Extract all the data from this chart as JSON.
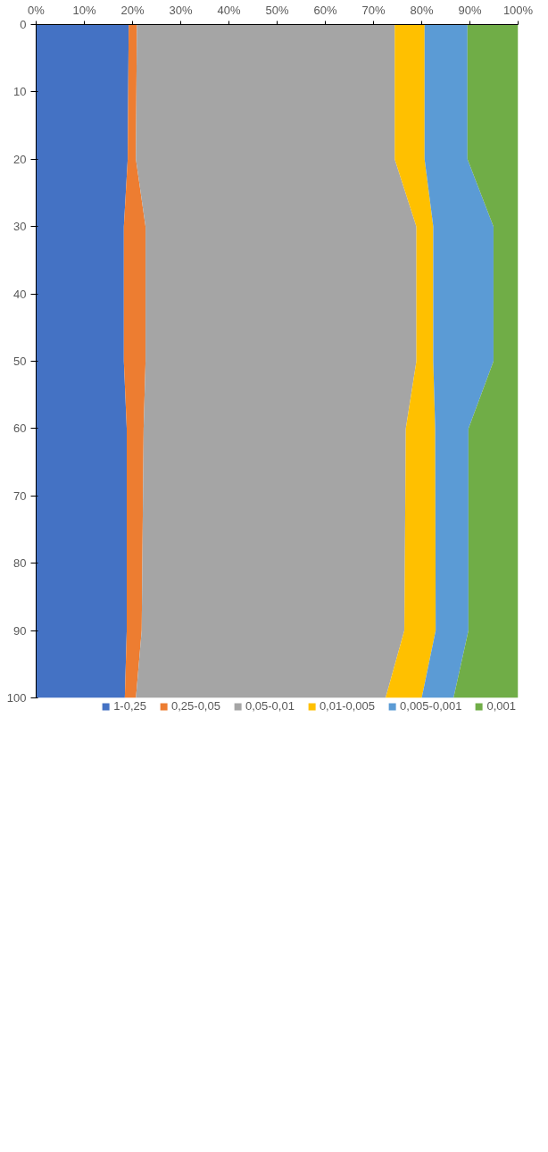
{
  "chart_data": {
    "type": "area",
    "stacked": true,
    "orientation": "horizontal",
    "x": [
      0,
      20,
      30,
      50,
      60,
      90,
      100
    ],
    "series": [
      {
        "name": "1-0,25",
        "color": "#4472c4",
        "values": [
          19.2,
          19.0,
          18.2,
          18.2,
          18.8,
          18.8,
          18.4
        ]
      },
      {
        "name": "0,25-0,05",
        "color": "#ed7d31",
        "values": [
          1.7,
          1.7,
          4.5,
          4.5,
          3.5,
          3.1,
          2.3
        ]
      },
      {
        "name": "0,05-0,01",
        "color": "#a5a5a5",
        "values": [
          53.5,
          53.7,
          56.2,
          56.2,
          54.4,
          54.5,
          51.8
        ]
      },
      {
        "name": "0,01-0,005",
        "color": "#ffc000",
        "values": [
          6.2,
          6.2,
          3.5,
          3.5,
          6.1,
          6.5,
          7.5
        ]
      },
      {
        "name": "0,005-0,001",
        "color": "#5b9bd5",
        "values": [
          8.9,
          8.9,
          12.5,
          12.5,
          6.9,
          6.8,
          6.6
        ]
      },
      {
        "name": "0,001",
        "color": "#70ad47",
        "values": [
          10.5,
          10.5,
          5.1,
          5.1,
          10.3,
          10.3,
          13.4
        ]
      }
    ],
    "xlim": [
      0,
      100
    ],
    "xticks": [
      {
        "value": 0,
        "label": "0%"
      },
      {
        "value": 10,
        "label": "10%"
      },
      {
        "value": 20,
        "label": "20%"
      },
      {
        "value": 30,
        "label": "30%"
      },
      {
        "value": 40,
        "label": "40%"
      },
      {
        "value": 50,
        "label": "50%"
      },
      {
        "value": 60,
        "label": "60%"
      },
      {
        "value": 70,
        "label": "70%"
      },
      {
        "value": 80,
        "label": "80%"
      },
      {
        "value": 90,
        "label": "90%"
      },
      {
        "value": 100,
        "label": "100%"
      }
    ],
    "ylim": [
      100,
      0
    ],
    "yticks": [
      0,
      10,
      20,
      30,
      40,
      50,
      60,
      70,
      80,
      90,
      100
    ],
    "grid": false,
    "legend": "bottom"
  }
}
